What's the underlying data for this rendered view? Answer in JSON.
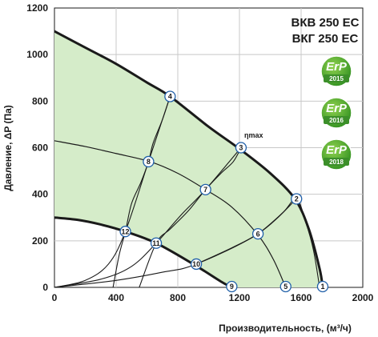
{
  "chart_data": {
    "type": "line",
    "title_lines": [
      "ВКВ 250 ЕС",
      "ВКГ 250 ЕС"
    ],
    "xlabel": "Производительность, (м³/ч)",
    "ylabel": "Давление, ΔP (Па)",
    "xlim": [
      0,
      2000
    ],
    "ylim": [
      0,
      1200
    ],
    "xticks": [
      "0",
      "400",
      "800",
      "1200",
      "1600",
      "2000"
    ],
    "yticks": [
      "0",
      "200",
      "400",
      "600",
      "800",
      "1000",
      "1200"
    ],
    "grid": true,
    "eta_label": "ηmax",
    "colors": {
      "fill": "#d5ecc9",
      "curve": "#1a1a1a",
      "grid": "#c8c8c8"
    },
    "series": [
      {
        "key": "max_curve",
        "x": [
          0,
          200,
          400,
          600,
          750,
          1000,
          1200,
          1400,
          1560,
          1650,
          1720,
          1740
        ],
        "y": [
          1100,
          1030,
          960,
          880,
          820,
          690,
          595,
          490,
          380,
          250,
          80,
          0
        ]
      },
      {
        "key": "mid_curve",
        "x": [
          0,
          200,
          400,
          620,
          800,
          980,
          1150,
          1320,
          1420,
          1500
        ],
        "y": [
          630,
          605,
          575,
          540,
          490,
          420,
          345,
          225,
          120,
          0
        ]
      },
      {
        "key": "min_curve",
        "x": [
          0,
          150,
          300,
          460,
          660,
          900,
          1080,
          1150
        ],
        "y": [
          300,
          290,
          270,
          240,
          190,
          100,
          25,
          0
        ]
      },
      {
        "key": "system_a",
        "x": [
          0,
          200,
          350,
          460,
          610,
          750
        ],
        "y": [
          0,
          30,
          100,
          240,
          540,
          820
        ]
      },
      {
        "key": "system_b",
        "x": [
          0,
          300,
          500,
          660,
          820,
          980,
          1210
        ],
        "y": [
          0,
          35,
          90,
          190,
          310,
          420,
          600
        ]
      },
      {
        "key": "system_c",
        "x": [
          0,
          400,
          700,
          920,
          1320,
          1570
        ],
        "y": [
          0,
          30,
          65,
          100,
          230,
          380
        ]
      },
      {
        "key": "constant_a",
        "x": [
          750,
          700,
          640,
          610,
          560,
          500,
          460,
          420,
          380
        ],
        "y": [
          820,
          720,
          620,
          540,
          450,
          360,
          240,
          140,
          0
        ]
      },
      {
        "key": "constant_b",
        "x": [
          1210,
          1160,
          1080,
          980,
          870,
          750,
          660,
          550
        ],
        "y": [
          600,
          540,
          490,
          420,
          330,
          250,
          190,
          0
        ]
      },
      {
        "key": "constant_c",
        "x": [
          1720,
          1680,
          1630,
          1570,
          1480,
          1320,
          1150,
          920
        ],
        "y": [
          0,
          160,
          280,
          380,
          320,
          230,
          170,
          100
        ]
      }
    ],
    "marked_points": [
      {
        "label": "1",
        "x": 1740,
        "y": 0
      },
      {
        "label": "2",
        "x": 1570,
        "y": 380
      },
      {
        "label": "3",
        "x": 1210,
        "y": 600
      },
      {
        "label": "4",
        "x": 750,
        "y": 820
      },
      {
        "label": "5",
        "x": 1500,
        "y": 0
      },
      {
        "label": "6",
        "x": 1320,
        "y": 230
      },
      {
        "label": "7",
        "x": 980,
        "y": 420
      },
      {
        "label": "8",
        "x": 610,
        "y": 540
      },
      {
        "label": "9",
        "x": 1150,
        "y": 0
      },
      {
        "label": "10",
        "x": 920,
        "y": 100
      },
      {
        "label": "11",
        "x": 660,
        "y": 190
      },
      {
        "label": "12",
        "x": 460,
        "y": 240
      }
    ]
  },
  "badges": [
    {
      "text": "ErP",
      "year": "2015"
    },
    {
      "text": "ErP",
      "year": "2016"
    },
    {
      "text": "ErP",
      "year": "2018"
    }
  ]
}
